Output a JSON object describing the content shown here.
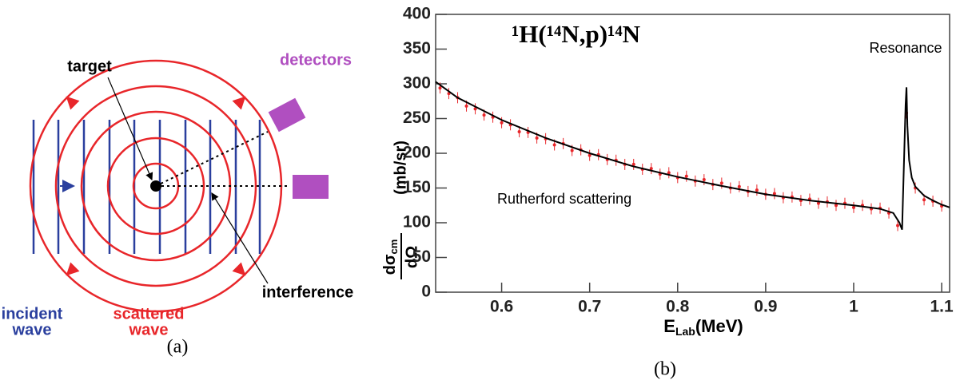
{
  "diagram": {
    "labels": {
      "target": "target",
      "detectors": "detectors",
      "incident_wave": [
        "incident",
        "wave"
      ],
      "scattered_wave": [
        "scattered",
        "wave"
      ],
      "interference": "interference"
    },
    "caption": "(a)"
  },
  "chart_data": {
    "type": "scatter",
    "title": "¹H(¹⁴N,p)¹⁴N",
    "xlabel": {
      "main": "E",
      "sub": "Lab",
      "unit": "(MeV)"
    },
    "ylabel": {
      "numerator": "dσ",
      "sub": "cm",
      "denominator": "dΩ",
      "unit": "(mb/sr)"
    },
    "annotations": {
      "resonance": "Resonance",
      "rutherford": "Rutherford scattering"
    },
    "caption": "(b)",
    "xlim": [
      0.525,
      1.109
    ],
    "xticks": [
      0.6,
      0.7,
      0.8,
      0.9,
      1,
      1.1
    ],
    "ylim": [
      0,
      400
    ],
    "yticks": [
      0,
      50,
      100,
      150,
      200,
      250,
      300,
      350,
      400
    ],
    "series": [
      {
        "type": "scatter",
        "color": "#e8262a",
        "error": 8,
        "x": [
          0.53,
          0.54,
          0.55,
          0.56,
          0.57,
          0.58,
          0.59,
          0.6,
          0.61,
          0.62,
          0.63,
          0.64,
          0.65,
          0.66,
          0.67,
          0.68,
          0.69,
          0.7,
          0.71,
          0.72,
          0.73,
          0.74,
          0.75,
          0.76,
          0.77,
          0.78,
          0.79,
          0.8,
          0.81,
          0.82,
          0.83,
          0.84,
          0.85,
          0.86,
          0.87,
          0.88,
          0.89,
          0.9,
          0.91,
          0.92,
          0.93,
          0.94,
          0.95,
          0.96,
          0.97,
          0.98,
          0.99,
          1,
          1.01,
          1.02,
          1.03,
          1.04,
          1.05,
          1.06,
          1.07,
          1.08,
          1.09,
          1.1
        ],
        "values": [
          294,
          286,
          280,
          268,
          264,
          255,
          252,
          244,
          241,
          231,
          230,
          222,
          221,
          212,
          214,
          204,
          205,
          197,
          198,
          191,
          190,
          184,
          184,
          177,
          178,
          170,
          172,
          165,
          167,
          160,
          162,
          155,
          157,
          150,
          152,
          145,
          147,
          141,
          142,
          136,
          137,
          132,
          134,
          128,
          130,
          125,
          128,
          122,
          125,
          120,
          121,
          114,
          96,
          258,
          150,
          133,
          131,
          124
        ]
      },
      {
        "type": "line",
        "color": "#000000",
        "x": [
          0.525,
          0.55,
          0.6,
          0.65,
          0.7,
          0.75,
          0.8,
          0.85,
          0.9,
          0.95,
          1,
          1.03,
          1.045,
          1.052,
          1.055,
          1.057,
          1.059,
          1.06,
          1.061,
          1.063,
          1.066,
          1.07,
          1.08,
          1.09,
          1.1,
          1.109
        ],
        "values": [
          303,
          280,
          248,
          222,
          200,
          181,
          166,
          153,
          141,
          132,
          125,
          120,
          114,
          100,
          90,
          180,
          270,
          295,
          240,
          190,
          165,
          152,
          139,
          132,
          126,
          122
        ]
      }
    ]
  }
}
